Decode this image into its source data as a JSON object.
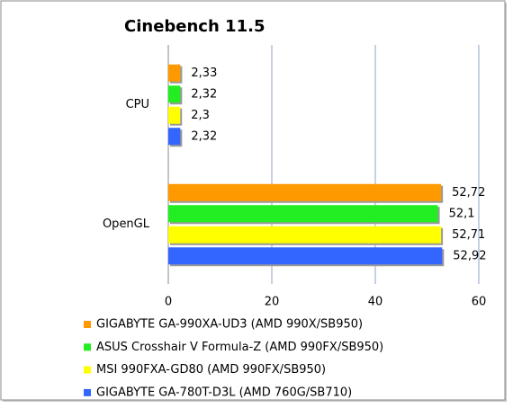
{
  "chart_data": {
    "type": "bar",
    "orientation": "horizontal",
    "title": "Cinebench 11.5",
    "categories": [
      "CPU",
      "OpenGL"
    ],
    "series": [
      {
        "name": "GIGABYTE GA-990XA-UD3 (AMD 990X/SB950)",
        "color": "#ff9900",
        "values": [
          2.33,
          52.72
        ],
        "value_labels": [
          "2,33",
          "52,72"
        ]
      },
      {
        "name": "ASUS Crosshair V Formula-Z (AMD 990FX/SB950)",
        "color": "#22ee22",
        "values": [
          2.32,
          52.1
        ],
        "value_labels": [
          "2,32",
          "52,1"
        ]
      },
      {
        "name": "MSI 990FXA-GD80 (AMD 990FX/SB950)",
        "color": "#ffff00",
        "values": [
          2.3,
          52.71
        ],
        "value_labels": [
          "2,3",
          "52,71"
        ]
      },
      {
        "name": "GIGABYTE GA-780T-D3L (AMD 760G/SB710)",
        "color": "#3366ff",
        "values": [
          2.32,
          52.92
        ],
        "value_labels": [
          "2,32",
          "52,92"
        ]
      }
    ],
    "xlim": [
      0,
      60
    ],
    "xticks": [
      0,
      20,
      40,
      60
    ],
    "grid": true
  }
}
